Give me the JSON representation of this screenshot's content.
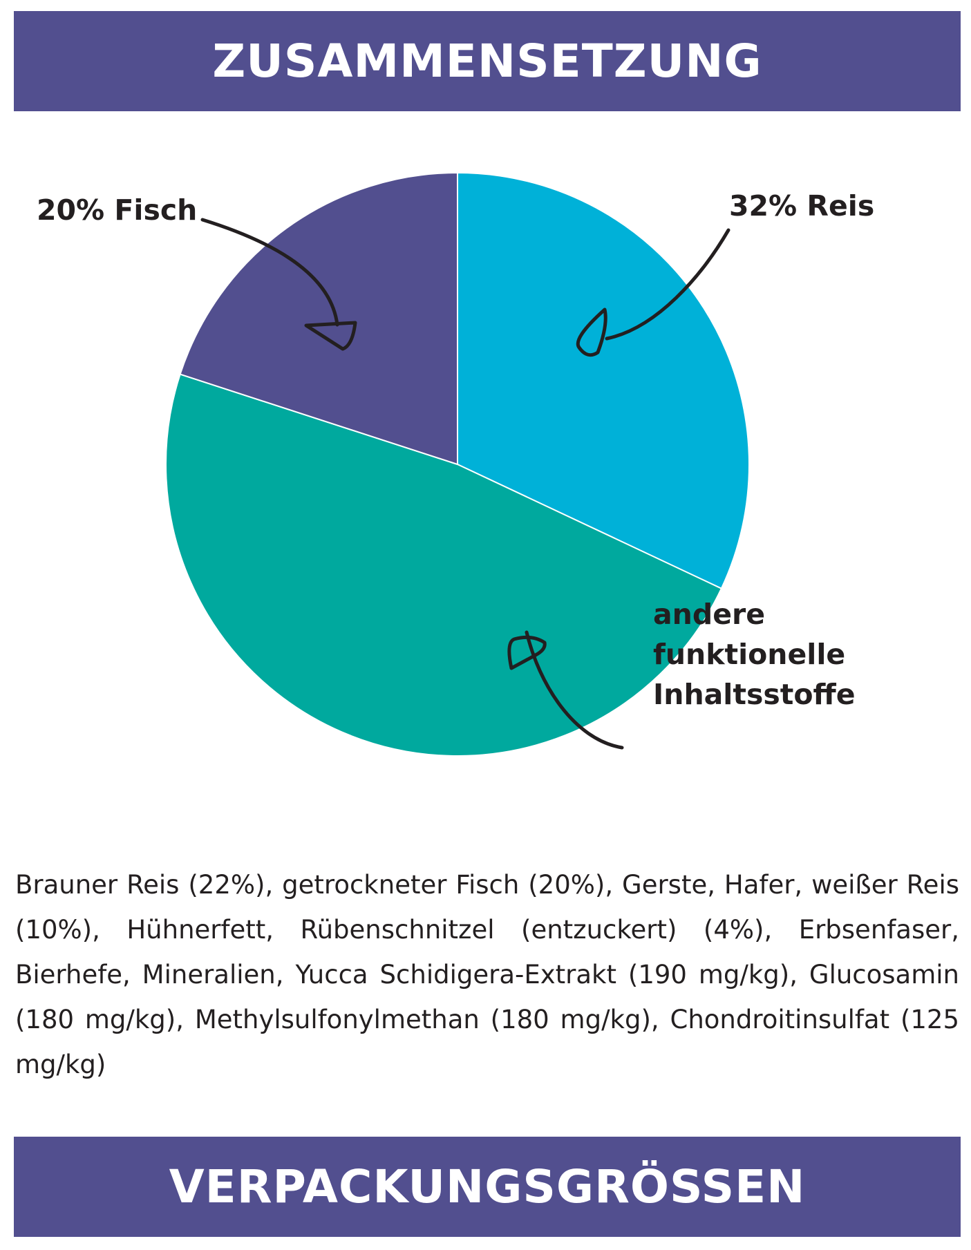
{
  "header": {
    "title": "ZUSAMMENSETZUNG"
  },
  "chart_data": {
    "type": "pie",
    "slices": [
      {
        "label": "32% Reis",
        "value": 32,
        "color": "#00b1d8"
      },
      {
        "label": "andere funktionelle Inhaltsstoffe",
        "label_lines": [
          "andere",
          "funktionelle",
          "Inhaltsstoffe"
        ],
        "value": 48,
        "color": "#00a99e"
      },
      {
        "label": "20% Fisch",
        "value": 20,
        "color": "#524f8f"
      }
    ],
    "start": "12 o'clock",
    "direction": "clockwise"
  },
  "ingredients": {
    "text": "Brauner Reis (22%), getrockneter Fisch (20%), Gerste, Hafer, weißer Reis (10%), Hühnerfett, Rübenschnitzel (entzuckert) (4%), Erbsenfaser, Bierhefe, Mineralien, Yucca Schidigera-Extrakt (190 mg/kg), Glucosamin (180 mg/kg), Methylsulfonylmethan (180 mg/kg), Chondroitinsulfat (125 mg/kg)"
  },
  "footer": {
    "title": "VERPACKUNGSGRÖSSEN"
  },
  "colors": {
    "banner": "#524f8f",
    "banner_text": "#ffffff",
    "text": "#231f20"
  }
}
